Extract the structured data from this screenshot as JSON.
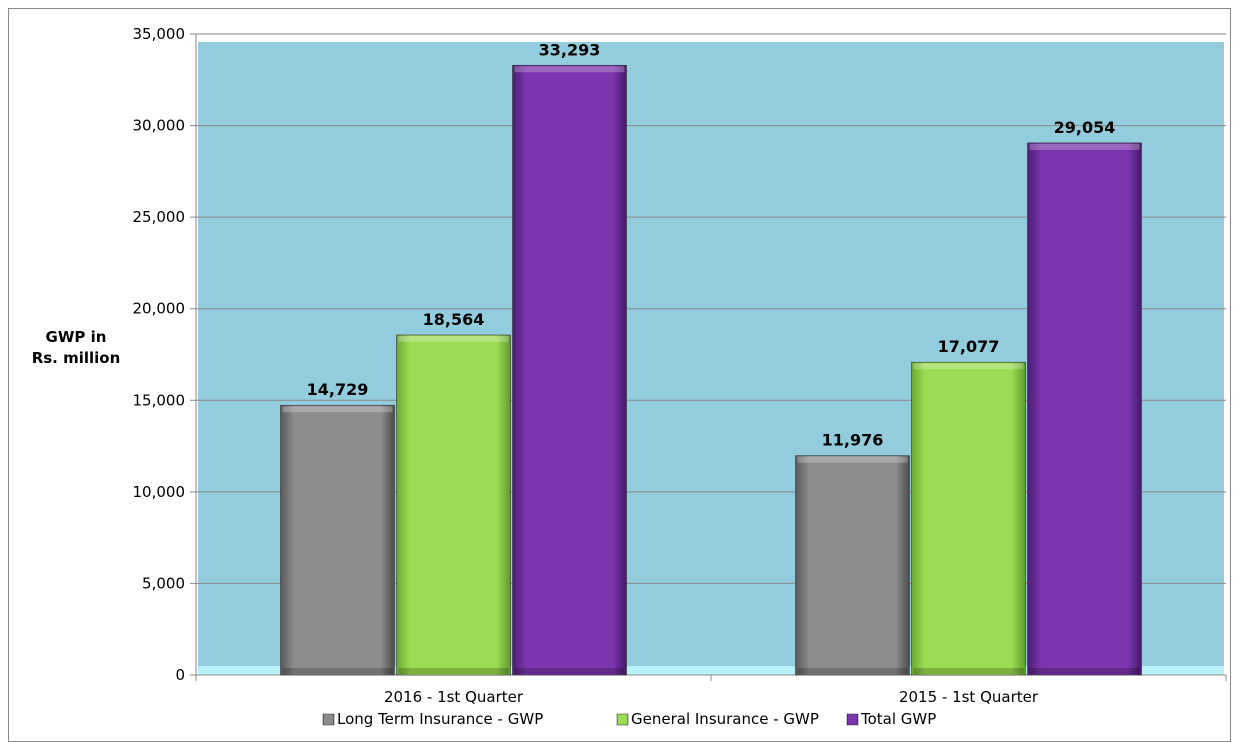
{
  "chart_data": {
    "type": "bar",
    "title": "",
    "ylabel_lines": [
      "GWP in",
      "Rs. million"
    ],
    "xlabel": "",
    "categories": [
      "2016 - 1st Quarter",
      "2015 - 1st Quarter"
    ],
    "series": [
      {
        "name": "Long Term Insurance - GWP",
        "values": [
          14729,
          11976
        ],
        "value_labels": [
          "14,729",
          "11,976"
        ],
        "color": "#8c8c8c"
      },
      {
        "name": "General Insurance - GWP",
        "values": [
          18564,
          17077
        ],
        "value_labels": [
          "18,564",
          "17,077"
        ],
        "color": "#9bdc52"
      },
      {
        "name": "Total GWP",
        "values": [
          33293,
          29054
        ],
        "value_labels": [
          "33,293",
          "29,054"
        ],
        "color": "#7b35ad"
      }
    ],
    "ylim": [
      0,
      35000
    ],
    "yticks": [
      0,
      5000,
      10000,
      15000,
      20000,
      25000,
      30000,
      35000
    ],
    "ytick_labels": [
      "0",
      "5,000",
      "10,000",
      "15,000",
      "20,000",
      "25,000",
      "30,000",
      "35,000"
    ],
    "grid": true,
    "legend_position": "bottom",
    "plot_background": "#93cddd",
    "floor_color": "#b7f0f7"
  }
}
